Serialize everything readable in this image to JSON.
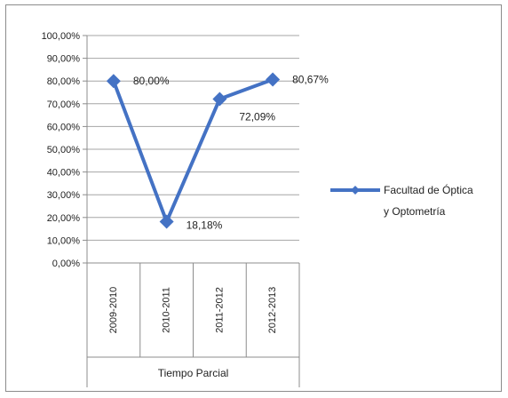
{
  "chart_data": {
    "type": "line",
    "title": "",
    "categories": [
      "2009-2010",
      "2010-2011",
      "2011-2012",
      "2012-2013"
    ],
    "series": [
      {
        "name": "Facultad de Óptica y Optometría",
        "values": [
          80.0,
          18.18,
          72.09,
          80.67
        ],
        "labels": [
          "80,00%",
          "18,18%",
          "72,09%",
          "80,67%"
        ],
        "color": "#4472C4"
      }
    ],
    "y_ticks": [
      "0,00%",
      "10,00%",
      "20,00%",
      "30,00%",
      "40,00%",
      "50,00%",
      "60,00%",
      "70,00%",
      "80,00%",
      "90,00%",
      "100,00%"
    ],
    "ylim": [
      0,
      100
    ],
    "xlabel": "Tiempo Parcial",
    "ylabel": "",
    "legend": {
      "position": "right",
      "lines": [
        "Facultad de Óptica",
        "y Optometría"
      ]
    },
    "grid": true
  }
}
